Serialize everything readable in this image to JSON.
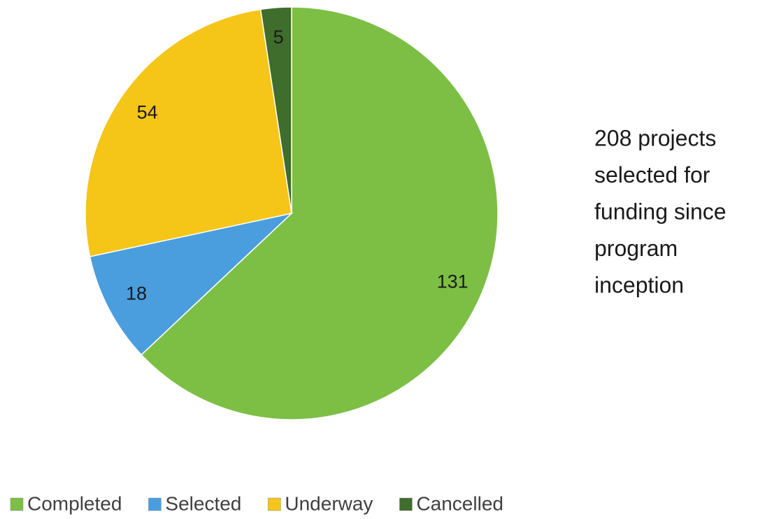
{
  "chart_data": {
    "type": "pie",
    "categories": [
      "Completed",
      "Selected",
      "Underway",
      "Cancelled"
    ],
    "values": [
      131,
      18,
      54,
      5
    ],
    "colors": [
      "#7dbf45",
      "#4a9ede",
      "#f5c518",
      "#3f6d2b"
    ],
    "annotation": [
      "208 projects",
      "selected for",
      "funding since",
      "program",
      "inception"
    ],
    "legend": "bottom"
  }
}
